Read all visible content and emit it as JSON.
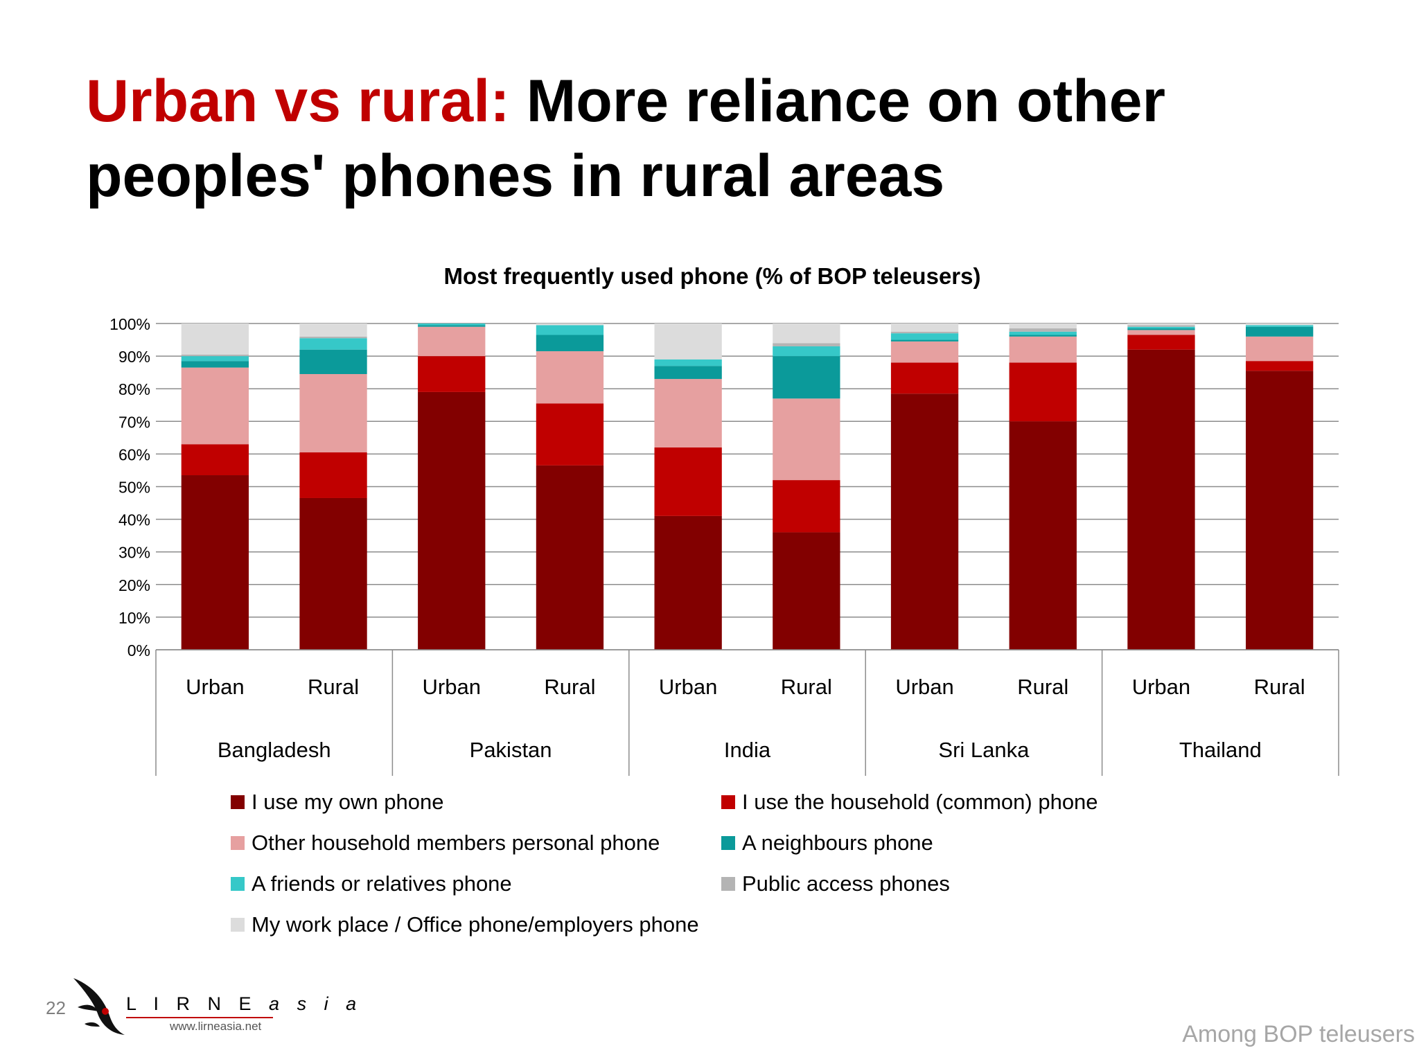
{
  "slide": {
    "title_accent": "Urban vs rural:",
    "title_rest": " More reliance on other peoples' phones in rural areas",
    "page_number": "22",
    "footer_note": "Among BOP teleusers",
    "logo": {
      "name_main": "L I R N E",
      "name_suffix": "a s i a",
      "url": "www.lirneasia.net"
    }
  },
  "chart_data": {
    "type": "bar",
    "stacked": true,
    "title": "Most frequently used phone (% of BOP teleusers)",
    "ylim": [
      0,
      100
    ],
    "yticks": [
      "0%",
      "10%",
      "20%",
      "30%",
      "40%",
      "50%",
      "60%",
      "70%",
      "80%",
      "90%",
      "100%"
    ],
    "grid": true,
    "legend_position": "bottom",
    "groups": [
      "Bangladesh",
      "Pakistan",
      "India",
      "Sri Lanka",
      "Thailand"
    ],
    "categories": [
      "Urban",
      "Rural",
      "Urban",
      "Rural",
      "Urban",
      "Rural",
      "Urban",
      "Rural",
      "Urban",
      "Rural"
    ],
    "series": [
      {
        "name": "I use my own phone",
        "color": "#820000",
        "values": [
          53.5,
          46.5,
          79,
          56.5,
          41,
          36,
          78.5,
          70,
          92,
          85.5
        ]
      },
      {
        "name": "I use the household (common) phone",
        "color": "#c00000",
        "values": [
          9.5,
          14,
          11,
          19,
          21,
          16,
          9.5,
          18,
          4.5,
          3
        ]
      },
      {
        "name": "Other household members personal phone",
        "color": "#e6a0a0",
        "values": [
          23.5,
          24,
          9,
          16,
          21,
          25,
          6.5,
          8,
          1.5,
          7.5
        ]
      },
      {
        "name": "A neighbours phone",
        "color": "#0b9a9a",
        "values": [
          2,
          7.5,
          0.5,
          5,
          4,
          13,
          0.5,
          0.5,
          0.5,
          3
        ]
      },
      {
        "name": "A friends or relatives phone",
        "color": "#36c8c8",
        "values": [
          1.5,
          3.5,
          0.5,
          3,
          2,
          3,
          2,
          1,
          0.5,
          0.5
        ]
      },
      {
        "name": "Public access phones",
        "color": "#b4b4b4",
        "values": [
          0.5,
          0.5,
          0,
          0,
          0,
          1,
          0.5,
          1,
          0.5,
          0
        ]
      },
      {
        "name": "My work place / Office phone/employers phone",
        "color": "#dcdcdc",
        "values": [
          9.5,
          4,
          0,
          0.5,
          11,
          6,
          2.5,
          1.5,
          0.5,
          0.5
        ]
      }
    ]
  }
}
